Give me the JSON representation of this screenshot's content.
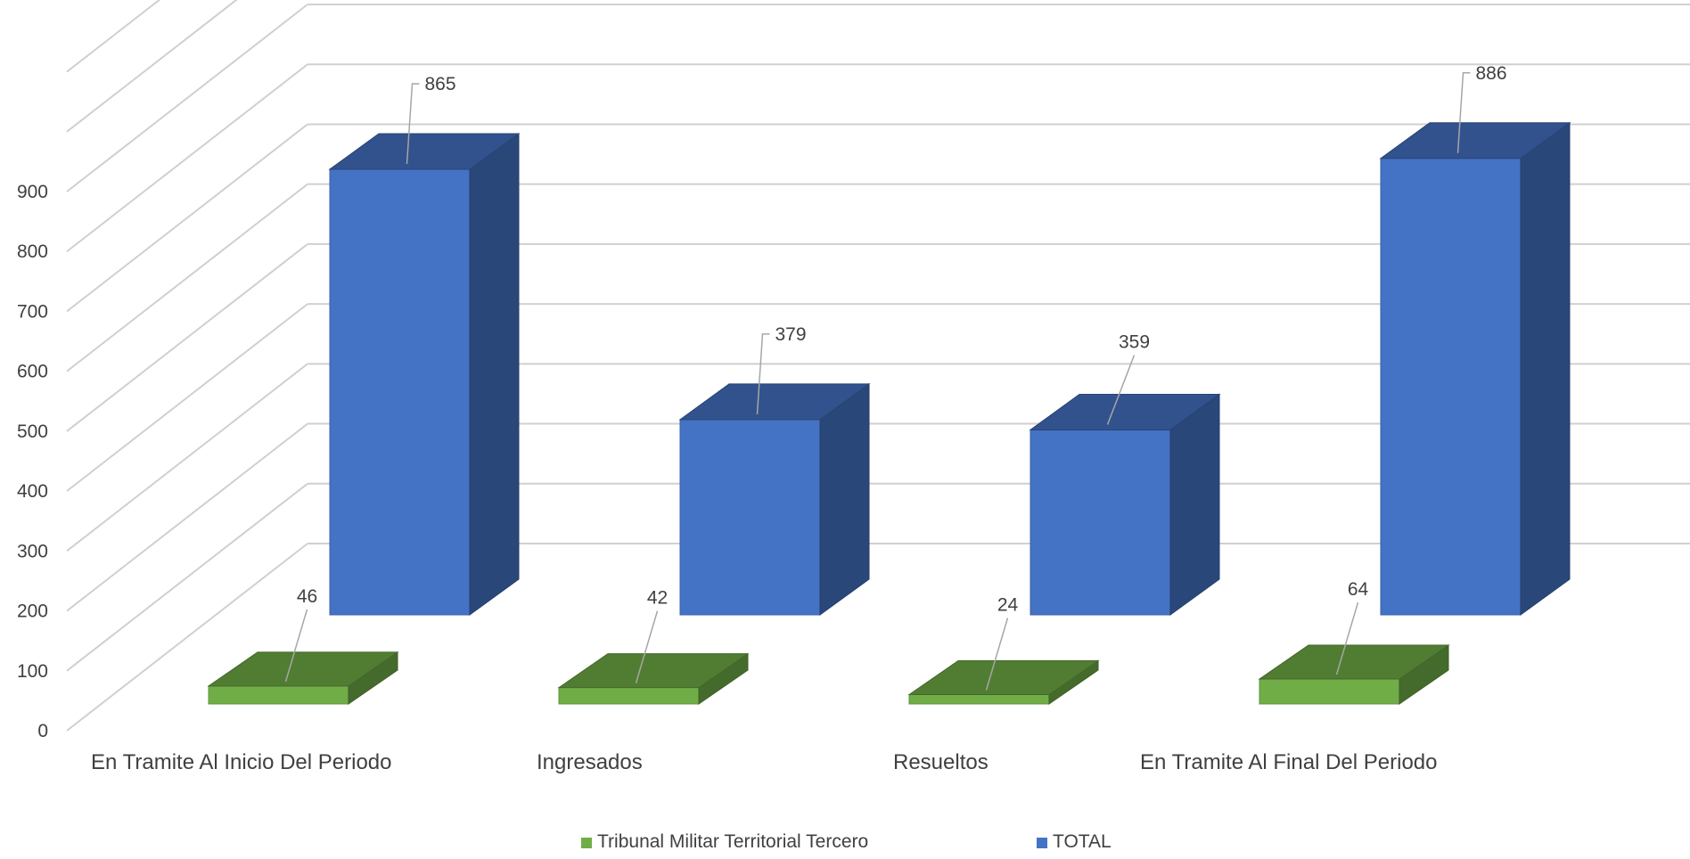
{
  "chart_data": {
    "type": "bar",
    "style": "3d-clustered-column",
    "categories": [
      "En Tramite Al Inicio Del Periodo",
      "Ingresados",
      "Resueltos",
      "En Tramite Al Final Del Periodo"
    ],
    "series": [
      {
        "name": "Tribunal Militar Territorial Tercero",
        "values": [
          46,
          42,
          24,
          64
        ],
        "color": "#70AD47"
      },
      {
        "name": "TOTAL",
        "values": [
          865,
          379,
          359,
          886
        ],
        "color": "#4472C4"
      }
    ],
    "y_ticks": [
      0,
      100,
      200,
      300,
      400,
      500,
      600,
      700,
      800,
      900
    ],
    "ylim": [
      0,
      1100
    ],
    "grid": true,
    "legend": "bottom",
    "data_labels": true
  }
}
